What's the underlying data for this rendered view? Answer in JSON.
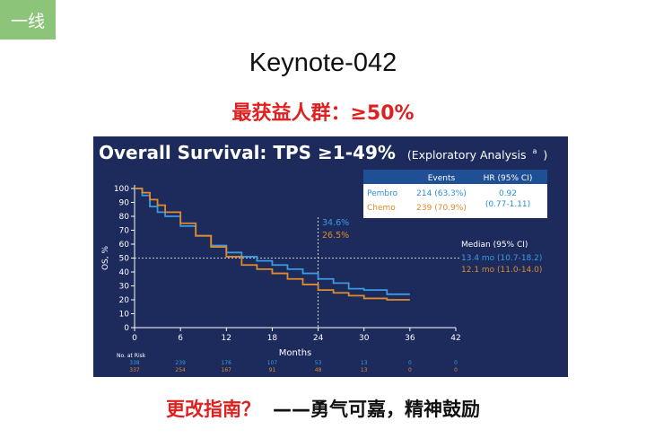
{
  "tag": "一线",
  "title": "Keynote-042",
  "subtitle": "最获益人群：≥50%",
  "footer": {
    "question": "更改指南？",
    "answer": "——勇气可嘉，精神鼓励"
  },
  "colors": {
    "background": "#1c2a5c",
    "pembro": "#3a9be0",
    "chemo": "#e08a2a",
    "tag": "#8cc47a",
    "accent_red": "#e02020"
  },
  "chart_data": {
    "type": "line",
    "title": "Overall Survival: TPS ≥1-49%",
    "title_suffix": "(Exploratory Analysis",
    "title_sup": "a",
    "title_close": ")",
    "xlabel": "Months",
    "ylabel": "OS, %",
    "xlim": [
      0,
      42
    ],
    "ylim": [
      0,
      100
    ],
    "x_ticks": [
      0,
      6,
      12,
      18,
      24,
      30,
      36,
      42
    ],
    "y_ticks": [
      0,
      10,
      20,
      30,
      40,
      50,
      60,
      70,
      80,
      90,
      100
    ],
    "reference_lines": {
      "y": 50,
      "x": 24
    },
    "annotation_24mo": {
      "pembro": "34.6%",
      "chemo": "26.5%"
    },
    "series": [
      {
        "name": "Pembro",
        "color": "#3a9be0",
        "x": [
          0,
          1,
          2,
          3,
          4,
          6,
          8,
          10,
          12,
          14,
          16,
          18,
          20,
          22,
          24,
          26,
          28,
          30,
          33,
          36
        ],
        "y": [
          100,
          95,
          87,
          83,
          80,
          73,
          66,
          59,
          54,
          51,
          48,
          45,
          42,
          39,
          35,
          32,
          28,
          27,
          24,
          24
        ]
      },
      {
        "name": "Chemo",
        "color": "#e08a2a",
        "x": [
          0,
          1,
          2,
          3,
          4,
          6,
          8,
          10,
          12,
          14,
          16,
          18,
          20,
          22,
          24,
          26,
          28,
          30,
          33,
          36
        ],
        "y": [
          100,
          97,
          92,
          88,
          83,
          75,
          66,
          58,
          51,
          45,
          42,
          39,
          35,
          31,
          27,
          25,
          23,
          21,
          20,
          20
        ]
      }
    ],
    "table": {
      "headers": [
        "",
        "Events",
        "HR (95% CI)"
      ],
      "rows": [
        {
          "arm": "Pembro",
          "events": "214 (63.3%)",
          "hr": "0.92"
        },
        {
          "arm": "Chemo",
          "events": "239 (70.9%)",
          "hr": "(0.77-1.11)"
        }
      ]
    },
    "median": {
      "label": "Median (95% CI)",
      "pembro": "13.4 mo (10.7-18.2)",
      "chemo": "12.1 mo (11.0-14.0)"
    },
    "at_risk": {
      "label": "No. at Risk",
      "pembro": [
        "338",
        "239",
        "176",
        "107",
        "53",
        "13",
        "0",
        "0"
      ],
      "chemo": [
        "337",
        "254",
        "167",
        "91",
        "48",
        "13",
        "0",
        "0"
      ]
    }
  }
}
